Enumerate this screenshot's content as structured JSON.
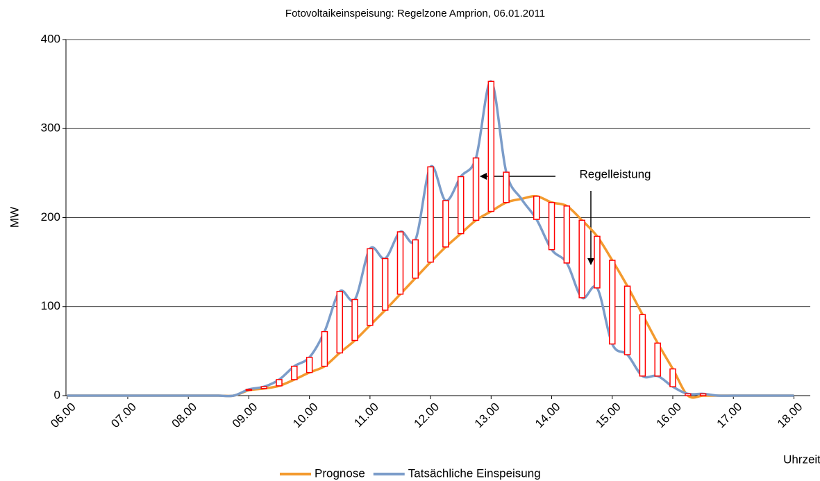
{
  "chart_data": {
    "type": "line",
    "title": "Fotovoltaikeinspeisung: Regelzone Amprion, 06.01.2011",
    "y_label": "MW",
    "x_label": "Uhrzeit",
    "annotation": "Regelleistung",
    "x": [
      6,
      6.25,
      6.5,
      6.75,
      7,
      7.25,
      7.5,
      7.75,
      8,
      8.25,
      8.5,
      8.75,
      9,
      9.25,
      9.5,
      9.75,
      10,
      10.25,
      10.5,
      10.75,
      11,
      11.25,
      11.5,
      11.75,
      12,
      12.25,
      12.5,
      12.75,
      13,
      13.25,
      13.5,
      13.75,
      14,
      14.25,
      14.5,
      14.75,
      15,
      15.25,
      15.5,
      15.75,
      16,
      16.25,
      16.5,
      16.75,
      17,
      17.25,
      17.5,
      17.75,
      18
    ],
    "series": [
      {
        "name": "Prognose",
        "color": "#f39a2e",
        "values": [
          0,
          0,
          0,
          0,
          0,
          0,
          0,
          0,
          0,
          0,
          0,
          0,
          6,
          8,
          11,
          18,
          26,
          33,
          48,
          62,
          79,
          96,
          114,
          132,
          150,
          167,
          182,
          197,
          207,
          217,
          221,
          224,
          217,
          213,
          197,
          179,
          152,
          123,
          91,
          59,
          30,
          0,
          0,
          0,
          0,
          0,
          0,
          0,
          0
        ]
      },
      {
        "name": "Tatsächliche Einspeisung",
        "color": "#7b9cc9",
        "values": [
          0,
          0,
          0,
          0,
          0,
          0,
          0,
          0,
          0,
          0,
          0,
          0,
          7,
          10,
          18,
          33,
          43,
          72,
          117,
          108,
          165,
          154,
          184,
          175,
          257,
          219,
          246,
          267,
          353,
          251,
          221,
          198,
          164,
          149,
          110,
          121,
          58,
          46,
          22,
          22,
          10,
          2,
          2,
          0,
          0,
          0,
          0,
          0,
          0
        ]
      }
    ],
    "diff_color": "#ff0000",
    "xlim": [
      5.98,
      18.27
    ],
    "xticks": [
      {
        "value": 6,
        "label": "06.00"
      },
      {
        "value": 7,
        "label": "07.00"
      },
      {
        "value": 8,
        "label": "08.00"
      },
      {
        "value": 9,
        "label": "09.00"
      },
      {
        "value": 10,
        "label": "10.00"
      },
      {
        "value": 11,
        "label": "11.00"
      },
      {
        "value": 12,
        "label": "12.00"
      },
      {
        "value": 13,
        "label": "13.00"
      },
      {
        "value": 14,
        "label": "14.00"
      },
      {
        "value": 15,
        "label": "15.00"
      },
      {
        "value": 16,
        "label": "16.00"
      },
      {
        "value": 17,
        "label": "17.00"
      },
      {
        "value": 18,
        "label": "18.00"
      }
    ],
    "ylim": [
      0,
      400
    ],
    "yticks": [
      0,
      100,
      200,
      300,
      400
    ],
    "grid": true,
    "legend": "bottom"
  }
}
